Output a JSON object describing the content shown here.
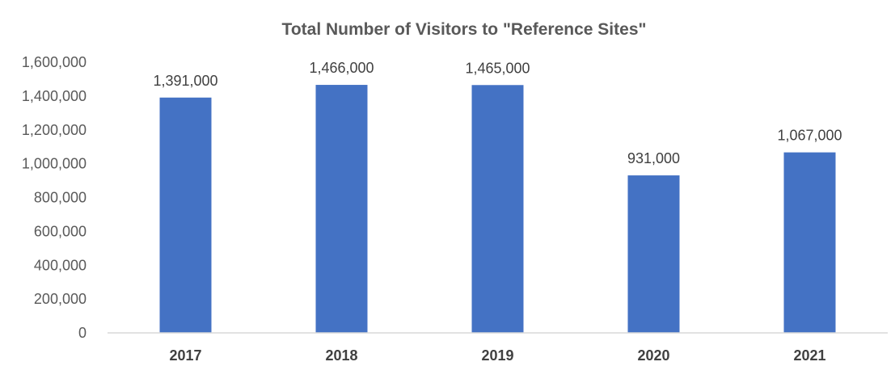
{
  "chart_data": {
    "type": "bar",
    "title": "Total Number of Visitors to \"Reference Sites\"",
    "xlabel": "",
    "ylabel": "",
    "categories": [
      "2017",
      "2018",
      "2019",
      "2020",
      "2021"
    ],
    "series": [
      {
        "values": [
          1391000,
          1466000,
          1465000,
          931000,
          1067000
        ],
        "data_labels": [
          "1,391,000",
          "1,466,000",
          "1,465,000",
          "931,000",
          "1,067,000"
        ],
        "color": "#4472C4"
      }
    ],
    "ylim": [
      0,
      1600000
    ],
    "yticks": [
      0,
      200000,
      400000,
      600000,
      800000,
      1000000,
      1200000,
      1400000,
      1600000
    ],
    "ytick_labels": [
      "0",
      "200,000",
      "400,000",
      "600,000",
      "800,000",
      "1,000,000",
      "1,200,000",
      "1,400,000",
      "1,600,000"
    ],
    "grid": false,
    "legend": "none",
    "colors": {
      "bar": "#4472C4",
      "axis": "#D9D9D9",
      "text": "#595959"
    }
  }
}
